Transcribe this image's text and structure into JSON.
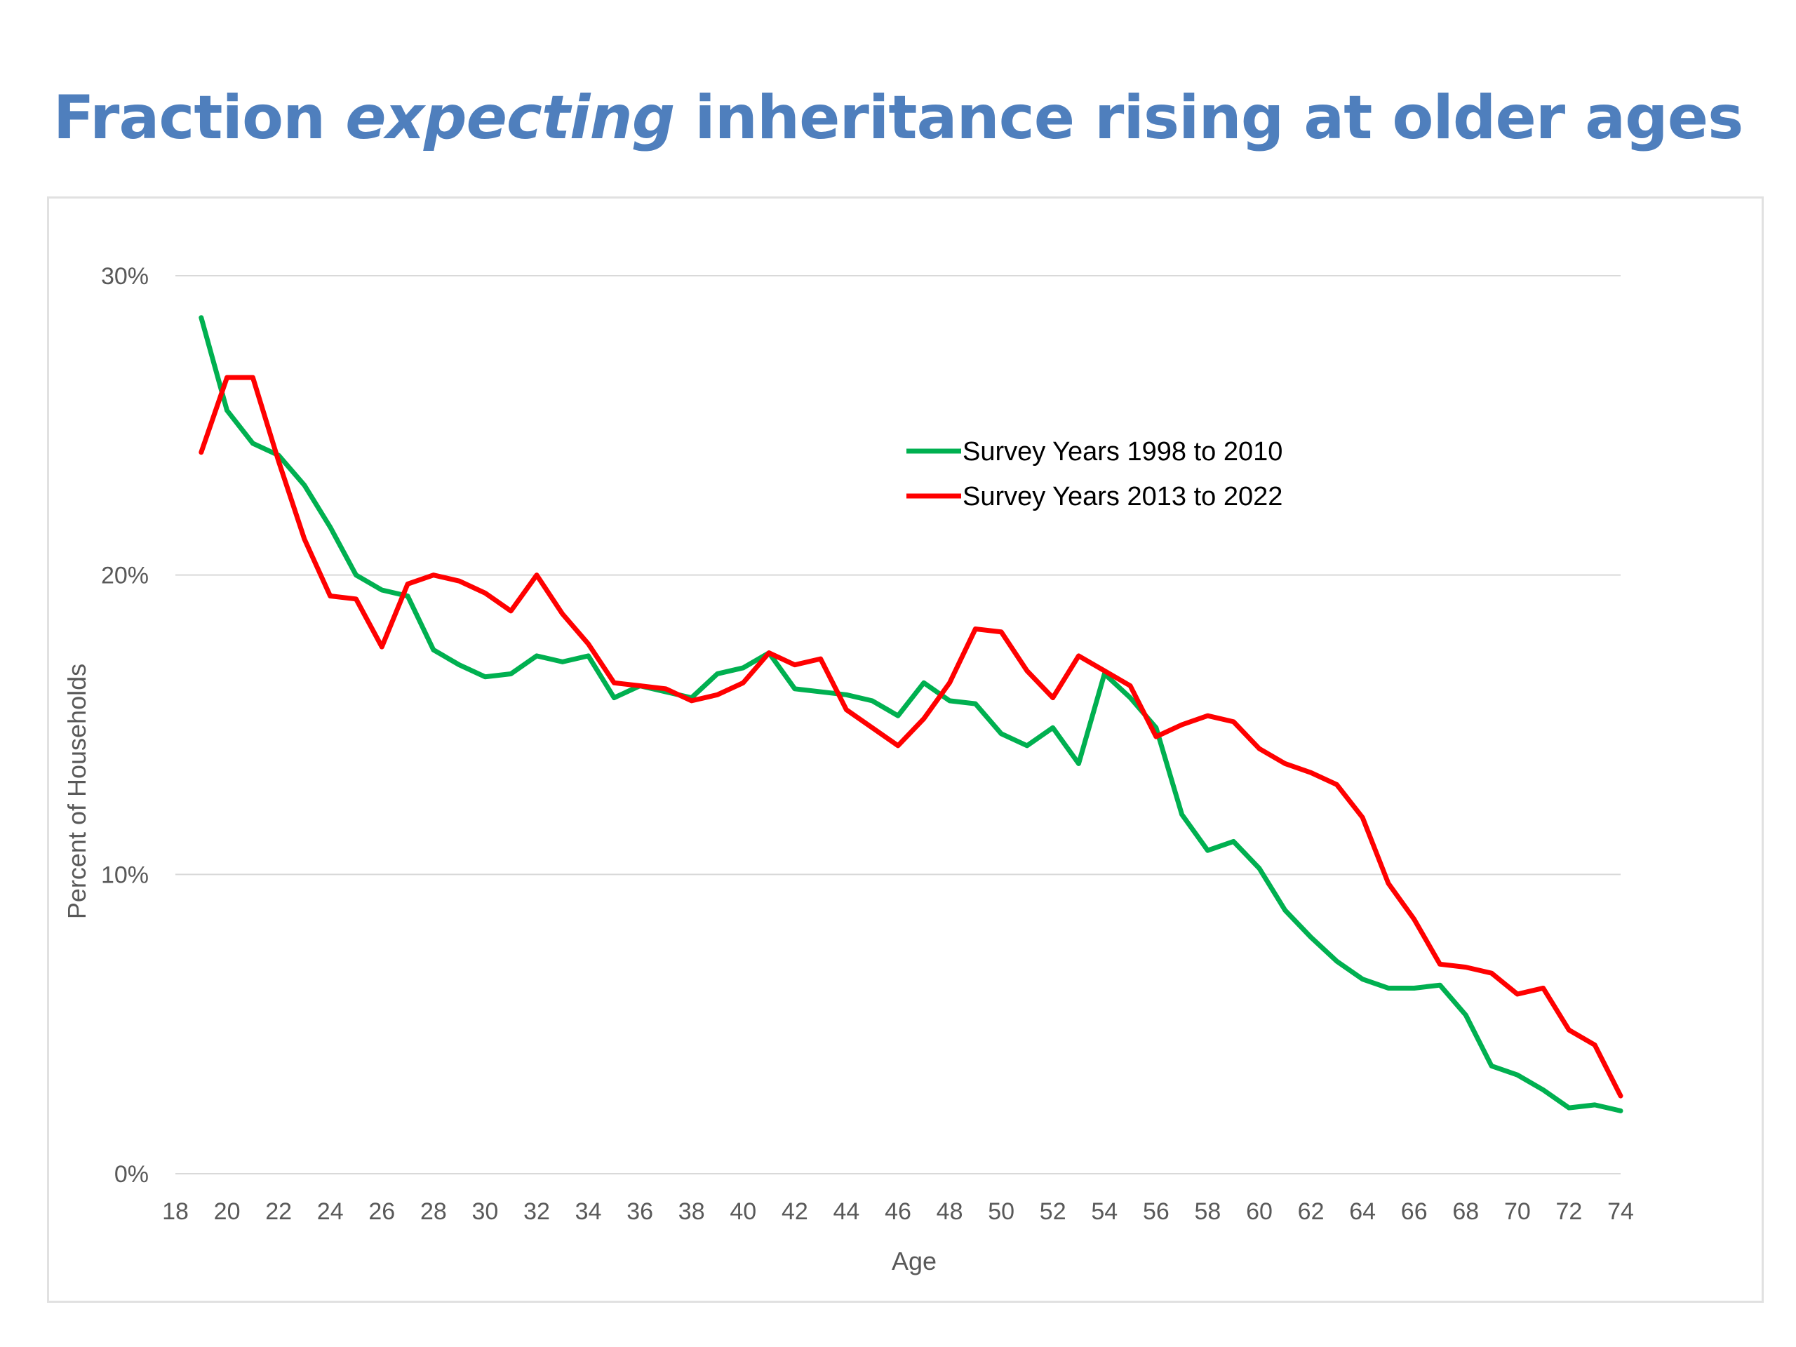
{
  "slide": {
    "title_part1": "Fraction ",
    "title_emphasis": "expecting",
    "title_part2": " inheritance rising at older ages",
    "title_color": "#4f7fbd"
  },
  "chart_data": {
    "type": "line",
    "title": "",
    "xlabel": "Age",
    "ylabel": "Percent of Households",
    "xlim": [
      18,
      74
    ],
    "ylim": [
      0,
      30
    ],
    "x_ticks": [
      18,
      20,
      22,
      24,
      26,
      28,
      30,
      32,
      34,
      36,
      38,
      40,
      42,
      44,
      46,
      48,
      50,
      52,
      54,
      56,
      58,
      60,
      62,
      64,
      66,
      68,
      70,
      72,
      74
    ],
    "y_ticks": [
      0,
      10,
      20,
      30
    ],
    "y_tick_labels": [
      "0%",
      "10%",
      "20%",
      "30%"
    ],
    "grid": "horizontal",
    "legend_position": "upper-center",
    "x": [
      19,
      20,
      21,
      22,
      23,
      24,
      25,
      26,
      27,
      28,
      29,
      30,
      31,
      32,
      33,
      34,
      35,
      36,
      37,
      38,
      39,
      40,
      41,
      42,
      43,
      44,
      45,
      46,
      47,
      48,
      49,
      50,
      51,
      52,
      53,
      54,
      55,
      56,
      57,
      58,
      59,
      60,
      61,
      62,
      63,
      64,
      65,
      66,
      67,
      68,
      69,
      70,
      71,
      72,
      73,
      74
    ],
    "series": [
      {
        "name": "Survey Years 1998 to 2010",
        "color": "#00b050",
        "values": [
          28.6,
          25.5,
          24.4,
          24.0,
          23.0,
          21.6,
          20.0,
          19.5,
          19.3,
          17.5,
          17.0,
          16.6,
          16.7,
          17.3,
          17.1,
          17.3,
          15.9,
          16.3,
          16.1,
          15.9,
          16.7,
          16.9,
          17.4,
          16.2,
          16.1,
          16.0,
          15.8,
          15.3,
          16.4,
          15.8,
          15.7,
          14.7,
          14.3,
          14.9,
          13.7,
          16.7,
          15.9,
          14.9,
          12.0,
          10.8,
          11.1,
          10.2,
          8.8,
          7.9,
          7.1,
          6.5,
          6.2,
          6.2,
          6.3,
          5.3,
          3.6,
          3.3,
          2.8,
          2.2,
          2.3,
          2.1
        ]
      },
      {
        "name": "Survey Years 2013 to 2022",
        "color": "#ff0000",
        "values": [
          24.1,
          26.6,
          26.6,
          23.8,
          21.2,
          19.3,
          19.2,
          17.6,
          19.7,
          20.0,
          19.8,
          19.4,
          18.8,
          20.0,
          18.7,
          17.7,
          16.4,
          16.3,
          16.2,
          15.8,
          16.0,
          16.4,
          17.4,
          17.0,
          17.2,
          15.5,
          14.9,
          14.3,
          15.2,
          16.4,
          18.2,
          18.1,
          16.8,
          15.9,
          17.3,
          16.8,
          16.3,
          14.6,
          15.0,
          15.3,
          15.1,
          14.2,
          13.7,
          13.4,
          13.0,
          11.9,
          9.7,
          8.5,
          7.0,
          6.9,
          6.7,
          6.0,
          6.2,
          4.8,
          4.3,
          2.6
        ]
      }
    ]
  }
}
